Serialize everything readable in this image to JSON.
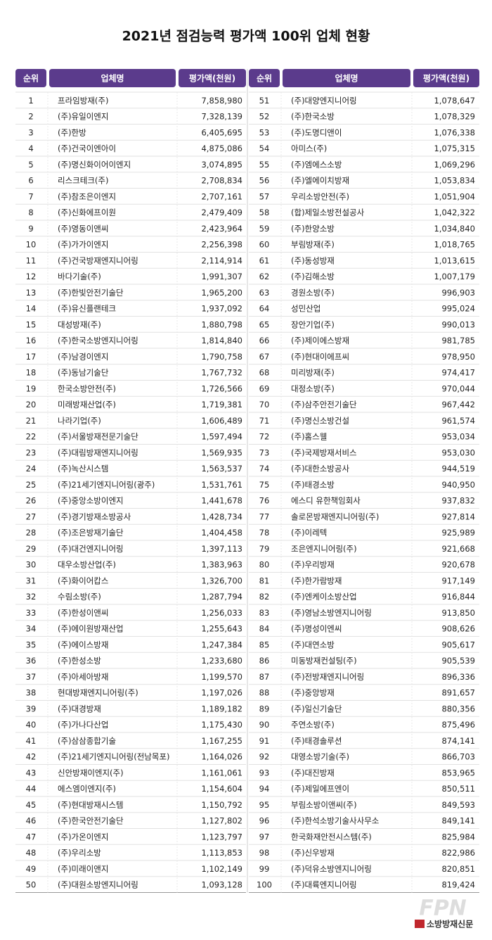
{
  "title": "2021년 점검능력 평가액 100위 업체 현황",
  "table": {
    "headers": [
      "순위",
      "업체명",
      "평가액(천원)",
      "순위",
      "업체명",
      "평가액(천원)"
    ],
    "rows": [
      [
        "1",
        "프라임방재(주)",
        "7,858,980",
        "51",
        "(주)대양엔지니어링",
        "1,078,647"
      ],
      [
        "2",
        "(주)유일이엔지",
        "7,328,139",
        "52",
        "(주)한국소방",
        "1,078,329"
      ],
      [
        "3",
        "(주)한방",
        "6,405,695",
        "53",
        "(주)도명디앤이",
        "1,076,338"
      ],
      [
        "4",
        "(주)건국이엔아이",
        "4,875,086",
        "54",
        "아미스(주)",
        "1,075,315"
      ],
      [
        "5",
        "(주)명신화이어이엔지",
        "3,074,895",
        "55",
        "(주)엠에스소방",
        "1,069,296"
      ],
      [
        "6",
        "리스크테크(주)",
        "2,708,834",
        "56",
        "(주)엘에이치방재",
        "1,053,834"
      ],
      [
        "7",
        "(주)참조은이엔지",
        "2,707,161",
        "57",
        "우리소방안전(주)",
        "1,051,904"
      ],
      [
        "8",
        "(주)신화에프이원",
        "2,479,409",
        "58",
        "(합)제일소방전설공사",
        "1,042,322"
      ],
      [
        "9",
        "(주)영동이앤씨",
        "2,423,964",
        "59",
        "(주)한양소방",
        "1,034,840"
      ],
      [
        "10",
        "(주)가가이엔지",
        "2,256,398",
        "60",
        "부림방재(주)",
        "1,018,765"
      ],
      [
        "11",
        "(주)건국방재엔지니어링",
        "2,114,914",
        "61",
        "(주)동성방재",
        "1,013,615"
      ],
      [
        "12",
        "바다기술(주)",
        "1,991,307",
        "62",
        "(주)김해소방",
        "1,007,179"
      ],
      [
        "13",
        "(주)한빛안전기술단",
        "1,965,200",
        "63",
        "경원소방(주)",
        "996,903"
      ],
      [
        "14",
        "(주)유신플랜테크",
        "1,937,092",
        "64",
        "성민산업",
        "995,024"
      ],
      [
        "15",
        "대성방재(주)",
        "1,880,798",
        "65",
        "장안기업(주)",
        "990,013"
      ],
      [
        "16",
        "(주)한국소방엔지니어링",
        "1,814,840",
        "66",
        "(주)제이에스방재",
        "981,785"
      ],
      [
        "17",
        "(주)남경이엔지",
        "1,790,758",
        "67",
        "(주)현대이에프씨",
        "978,950"
      ],
      [
        "18",
        "(주)동남기술단",
        "1,767,732",
        "68",
        "미리방재(주)",
        "974,417"
      ],
      [
        "19",
        "한국소방안전(주)",
        "1,726,566",
        "69",
        "대정소방(주)",
        "970,044"
      ],
      [
        "20",
        "미래방재산업(주)",
        "1,719,381",
        "70",
        "(주)삼주안전기술단",
        "967,442"
      ],
      [
        "21",
        "나라기업(주)",
        "1,606,489",
        "71",
        "(주)명신소방건설",
        "961,574"
      ],
      [
        "22",
        "(주)서울방재전문기술단",
        "1,597,494",
        "72",
        "(주)홈스웰",
        "953,034"
      ],
      [
        "23",
        "(주)대림방재엔지니어링",
        "1,569,935",
        "73",
        "(주)국제방재서비스",
        "953,030"
      ],
      [
        "24",
        "(주)녹산시스템",
        "1,563,537",
        "74",
        "(주)대한소방공사",
        "944,519"
      ],
      [
        "25",
        "(주)21세기엔지니어링(광주)",
        "1,531,761",
        "75",
        "(주)태경소방",
        "940,950"
      ],
      [
        "26",
        "(주)중앙소방이엔지",
        "1,441,678",
        "76",
        "에스디 유한책임회사",
        "937,832"
      ],
      [
        "27",
        "(주)경기방재소방공사",
        "1,428,734",
        "77",
        "솔로몬방재엔지니어링(주)",
        "927,814"
      ],
      [
        "28",
        "(주)조은방재기술단",
        "1,404,458",
        "78",
        "(주)이레텍",
        "925,989"
      ],
      [
        "29",
        "(주)대건엔지니어링",
        "1,397,113",
        "79",
        "조은엔지니어링(주)",
        "921,668"
      ],
      [
        "30",
        "대우소방산업(주)",
        "1,383,963",
        "80",
        "(주)우리방재",
        "920,678"
      ],
      [
        "31",
        "(주)화이어캅스",
        "1,326,700",
        "81",
        "(주)한가람방재",
        "917,149"
      ],
      [
        "32",
        "수림소방(주)",
        "1,287,794",
        "82",
        "(주)엔케이소방산업",
        "916,844"
      ],
      [
        "33",
        "(주)한성이앤씨",
        "1,256,033",
        "83",
        "(주)영남소방엔지니어링",
        "913,850"
      ],
      [
        "34",
        "(주)에이원방재산업",
        "1,255,643",
        "84",
        "(주)명성이엔씨",
        "908,626"
      ],
      [
        "35",
        "(주)에이스방재",
        "1,247,384",
        "85",
        "(주)대연소방",
        "905,617"
      ],
      [
        "36",
        "(주)한성소방",
        "1,233,680",
        "86",
        "미동방재컨설팅(주)",
        "905,539"
      ],
      [
        "37",
        "(주)아세아방재",
        "1,199,570",
        "87",
        "(주)전방재엔지니어링",
        "896,336"
      ],
      [
        "38",
        "현대방재엔지니어링(주)",
        "1,197,026",
        "88",
        "(주)중앙방재",
        "891,657"
      ],
      [
        "39",
        "(주)대경방재",
        "1,189,182",
        "89",
        "(주)일신기술단",
        "880,356"
      ],
      [
        "40",
        "(주)가나다산업",
        "1,175,430",
        "90",
        "주연소방(주)",
        "875,496"
      ],
      [
        "41",
        "(주)삼삼종합기술",
        "1,167,255",
        "91",
        "(주)태경솔루션",
        "874,141"
      ],
      [
        "42",
        "(주)21세기엔지니어링(전남목포)",
        "1,164,026",
        "92",
        "대영소방기술(주)",
        "866,703"
      ],
      [
        "43",
        "신안방재이엔지(주)",
        "1,161,061",
        "93",
        "(주)대진방재",
        "853,965"
      ],
      [
        "44",
        "에스엠이엔지(주)",
        "1,154,604",
        "94",
        "(주)제일에프엔이",
        "850,511"
      ],
      [
        "45",
        "(주)현대방재시스템",
        "1,150,792",
        "95",
        "부림소방이앤씨(주)",
        "849,593"
      ],
      [
        "46",
        "(주)한국안전기술단",
        "1,127,802",
        "96",
        "(주)한석소방기술사사무소",
        "849,141"
      ],
      [
        "47",
        "(주)가온이엔지",
        "1,123,797",
        "97",
        "한국화재안전시스템(주)",
        "825,984"
      ],
      [
        "48",
        "(주)우리소방",
        "1,113,853",
        "98",
        "(주)신우방재",
        "822,986"
      ],
      [
        "49",
        "(주)미래이앤지",
        "1,102,149",
        "99",
        "(주)덕유소방엔지니어링",
        "820,851"
      ],
      [
        "50",
        "(주)대원소방엔지니어링",
        "1,093,128",
        "100",
        "(주)대륙엔지니어링",
        "819,424"
      ]
    ]
  },
  "footer": {
    "logo_mark": "FPN",
    "logo_text": "소방방재신문"
  }
}
